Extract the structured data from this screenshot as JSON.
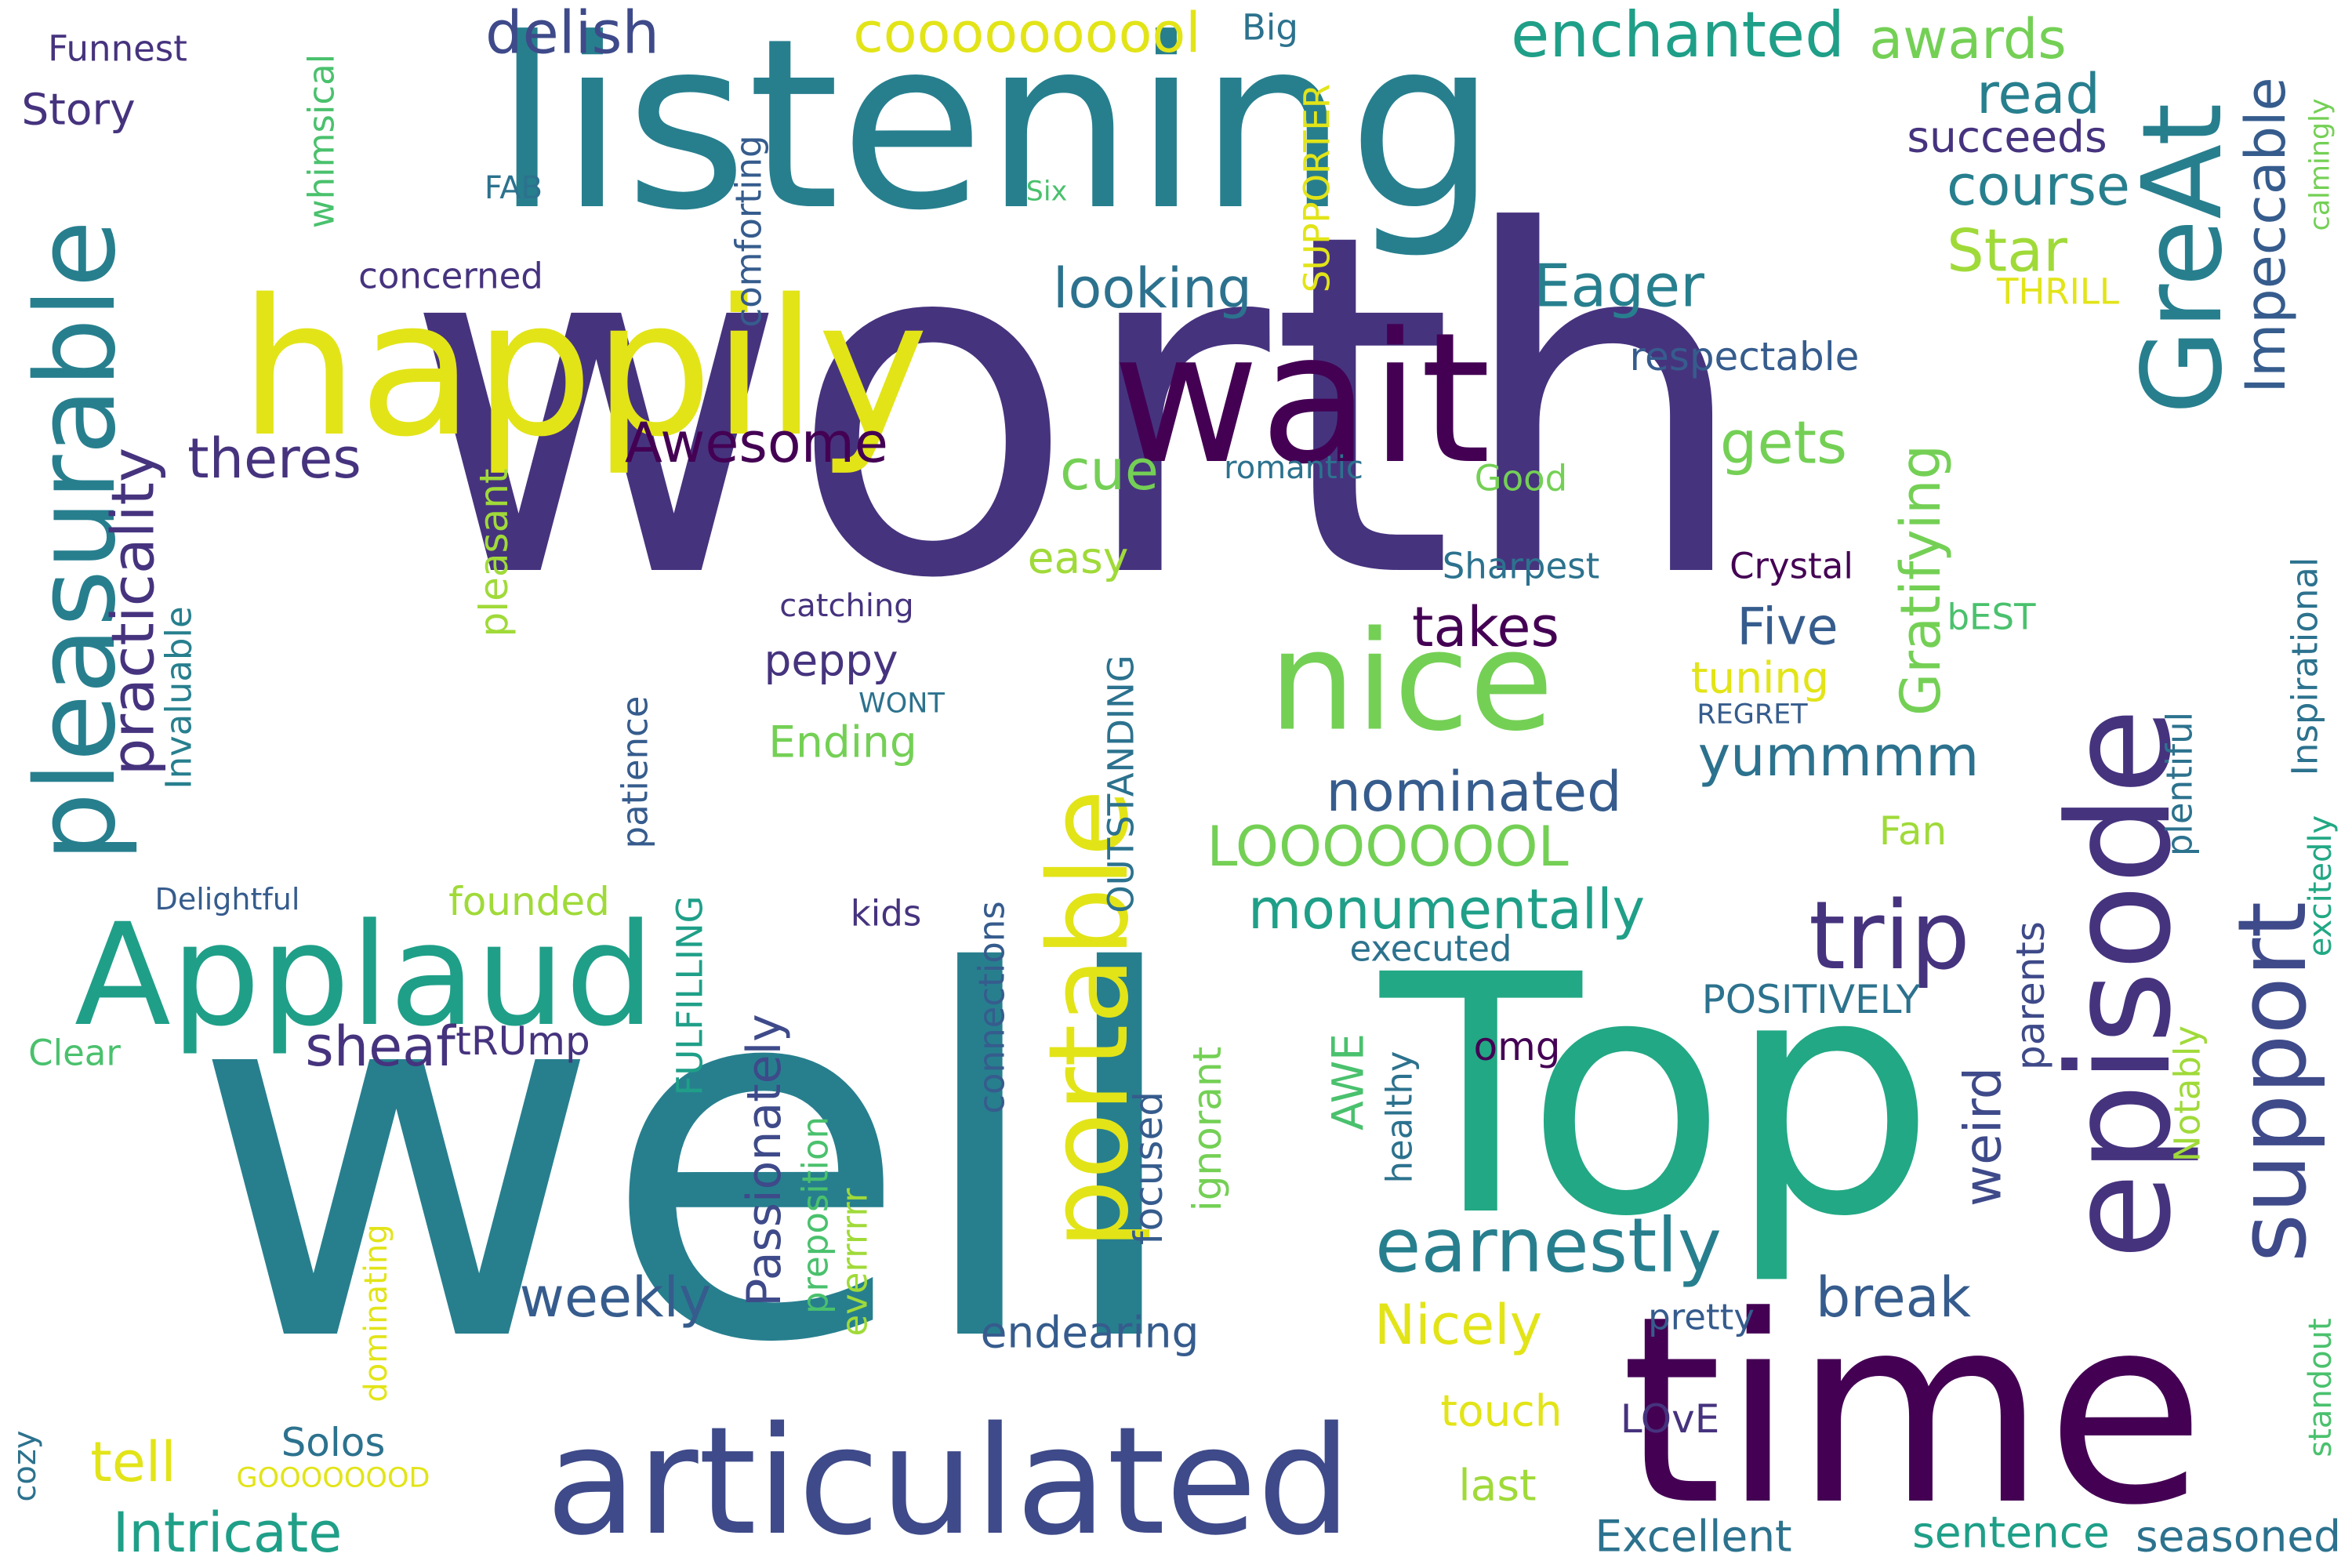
{
  "colors": {
    "background": "#ffffff",
    "dark_purple": "#440154",
    "purple": "#46337e",
    "indigo": "#3e4a89",
    "slate_blue": "#365c8d",
    "steel_blue": "#2c728e",
    "teal": "#277f8e",
    "sea_green": "#1f9f88",
    "green": "#22a884",
    "light_green": "#4ac16d",
    "lime": "#74d055",
    "yellow_green": "#a0da39",
    "yellow": "#e2e418"
  },
  "words": [
    {
      "text": "worth",
      "color": "#46337e"
    },
    {
      "text": "well",
      "color": "#277f8e"
    },
    {
      "text": "listening",
      "color": "#277f8e"
    },
    {
      "text": "Top",
      "color": "#22a884"
    },
    {
      "text": "time",
      "color": "#440154"
    },
    {
      "text": "happily",
      "color": "#e2e418"
    },
    {
      "text": "wait",
      "color": "#440154"
    },
    {
      "text": "articulated",
      "color": "#3e4a89"
    },
    {
      "text": "episode",
      "color": "#46337e"
    },
    {
      "text": "Applaud",
      "color": "#1f9f88"
    },
    {
      "text": "nice",
      "color": "#74d055"
    },
    {
      "text": "pleasurable",
      "color": "#277f8e"
    },
    {
      "text": "portable",
      "color": "#e2e418"
    },
    {
      "text": "GreAt",
      "color": "#277f8e"
    },
    {
      "text": "support",
      "color": "#3e4a89"
    },
    {
      "text": "trip",
      "color": "#46337e"
    },
    {
      "text": "earnestly",
      "color": "#277f8e"
    },
    {
      "text": "enchanted",
      "color": "#1f9f88"
    },
    {
      "text": "practicality",
      "color": "#46337e"
    },
    {
      "text": "delish",
      "color": "#3e4a89"
    },
    {
      "text": "coooooooool",
      "color": "#e2e418"
    },
    {
      "text": "awards",
      "color": "#74d055"
    },
    {
      "text": "Impeccable",
      "color": "#365c8d"
    },
    {
      "text": "read",
      "color": "#277f8e"
    },
    {
      "text": "course",
      "color": "#277f8e"
    },
    {
      "text": "succeeds",
      "color": "#46337e"
    },
    {
      "text": "Star",
      "color": "#a0da39"
    },
    {
      "text": "Eager",
      "color": "#277f8e"
    },
    {
      "text": "looking",
      "color": "#2c728e"
    },
    {
      "text": "Awesome",
      "color": "#440154"
    },
    {
      "text": "theres",
      "color": "#46337e"
    },
    {
      "text": "gets",
      "color": "#74d055"
    },
    {
      "text": "cue",
      "color": "#74d055"
    },
    {
      "text": "takes",
      "color": "#440154"
    },
    {
      "text": "Five",
      "color": "#365c8d"
    },
    {
      "text": "Gratifying",
      "color": "#74d055"
    },
    {
      "text": "yummmm",
      "color": "#2c728e"
    },
    {
      "text": "nominated",
      "color": "#365c8d"
    },
    {
      "text": "LOOOOOOOL",
      "color": "#74d055"
    },
    {
      "text": "monumentally",
      "color": "#1f9f88"
    },
    {
      "text": "sheaf",
      "color": "#46337e"
    },
    {
      "text": "weekly",
      "color": "#365c8d"
    },
    {
      "text": "Nicely",
      "color": "#e2e418"
    },
    {
      "text": "break",
      "color": "#365c8d"
    },
    {
      "text": "Intricate",
      "color": "#1f9f88"
    },
    {
      "text": "tell",
      "color": "#e2e418"
    },
    {
      "text": "Passionately",
      "color": "#3e4a89"
    },
    {
      "text": "Excellent",
      "color": "#2c728e"
    },
    {
      "text": "sentence",
      "color": "#1f9f88"
    },
    {
      "text": "seasoned",
      "color": "#2c728e"
    },
    {
      "text": "touch",
      "color": "#e2e418"
    },
    {
      "text": "last",
      "color": "#a0da39"
    },
    {
      "text": "LOvE",
      "color": "#46337e"
    },
    {
      "text": "endearing",
      "color": "#365c8d"
    },
    {
      "text": "pretty",
      "color": "#365c8d"
    },
    {
      "text": "weird",
      "color": "#3e4a89"
    },
    {
      "text": "parents",
      "color": "#3e4a89"
    },
    {
      "text": "AWE",
      "color": "#4ac16d"
    },
    {
      "text": "POSITIVELY",
      "color": "#2c728e"
    },
    {
      "text": "omg",
      "color": "#440154"
    },
    {
      "text": "executed",
      "color": "#2c728e"
    },
    {
      "text": "Funnest",
      "color": "#46337e"
    },
    {
      "text": "Story",
      "color": "#46337e"
    },
    {
      "text": "whimsical",
      "color": "#4ac16d"
    },
    {
      "text": "FAB",
      "color": "#2c728e"
    },
    {
      "text": "Six",
      "color": "#4ac16d"
    },
    {
      "text": "Big",
      "color": "#2c728e"
    },
    {
      "text": "comforting",
      "color": "#365c8d"
    },
    {
      "text": "SUPPORTER",
      "color": "#e2e418"
    },
    {
      "text": "concerned",
      "color": "#46337e"
    },
    {
      "text": "respectable",
      "color": "#365c8d"
    },
    {
      "text": "THRILL",
      "color": "#e2e418"
    },
    {
      "text": "calmingly",
      "color": "#74d055"
    },
    {
      "text": "excitedly",
      "color": "#22a884"
    },
    {
      "text": "pleasant",
      "color": "#a0da39"
    },
    {
      "text": "romantic",
      "color": "#2c728e"
    },
    {
      "text": "Good",
      "color": "#74d055"
    },
    {
      "text": "easy",
      "color": "#a0da39"
    },
    {
      "text": "Sharpest",
      "color": "#2c728e"
    },
    {
      "text": "Crystal",
      "color": "#440154"
    },
    {
      "text": "catching",
      "color": "#46337e"
    },
    {
      "text": "peppy",
      "color": "#46337e"
    },
    {
      "text": "WONT",
      "color": "#2c728e"
    },
    {
      "text": "REGRET",
      "color": "#365c8d"
    },
    {
      "text": "tuning",
      "color": "#e2e418"
    },
    {
      "text": "bEST",
      "color": "#4ac16d"
    },
    {
      "text": "Inspirational",
      "color": "#2c728e"
    },
    {
      "text": "Invaluable",
      "color": "#277f8e"
    },
    {
      "text": "patience",
      "color": "#365c8d"
    },
    {
      "text": "Ending",
      "color": "#74d055"
    },
    {
      "text": "OUTSTANDING",
      "color": "#2c728e"
    },
    {
      "text": "Fan",
      "color": "#a0da39"
    },
    {
      "text": "plentiful",
      "color": "#2c728e"
    },
    {
      "text": "Delightful",
      "color": "#365c8d"
    },
    {
      "text": "founded",
      "color": "#a0da39"
    },
    {
      "text": "kids",
      "color": "#46337e"
    },
    {
      "text": "FULFILLING",
      "color": "#1f9f88"
    },
    {
      "text": "connections",
      "color": "#365c8d"
    },
    {
      "text": "Clear",
      "color": "#4ac16d"
    },
    {
      "text": "tRUmp",
      "color": "#46337e"
    },
    {
      "text": "healthy",
      "color": "#2c728e"
    },
    {
      "text": "Notably",
      "color": "#a0da39"
    },
    {
      "text": "standout",
      "color": "#4ac16d"
    },
    {
      "text": "preposition",
      "color": "#4ac16d"
    },
    {
      "text": "everrrrrr",
      "color": "#a0da39"
    },
    {
      "text": "focused",
      "color": "#365c8d"
    },
    {
      "text": "ignorant",
      "color": "#74d055"
    },
    {
      "text": "dominating",
      "color": "#e2e418"
    },
    {
      "text": "cozy",
      "color": "#2c728e"
    },
    {
      "text": "Solos",
      "color": "#2c728e"
    },
    {
      "text": "GOOOOOOOD",
      "color": "#e2e418"
    }
  ]
}
